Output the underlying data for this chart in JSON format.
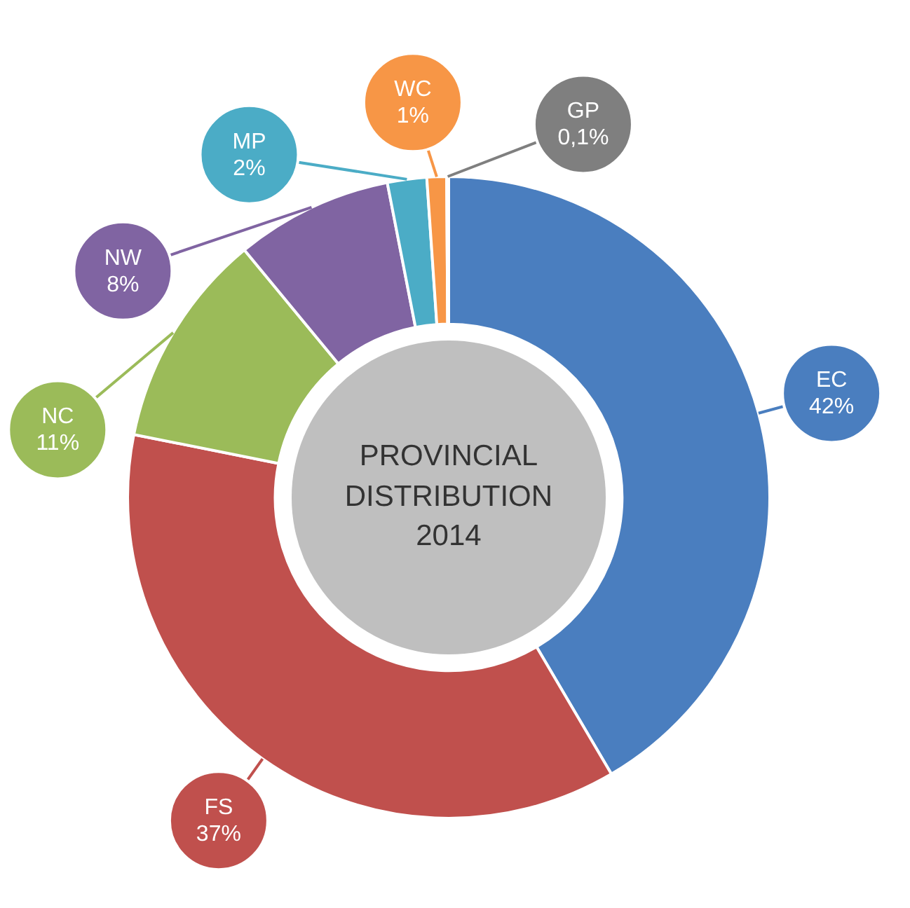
{
  "chart_data": {
    "type": "donut",
    "title": "PROVINCIAL DISTRIBUTION 2014",
    "categories": [
      "EC",
      "FS",
      "NC",
      "NW",
      "MP",
      "WC",
      "GP"
    ],
    "values": [
      42,
      37,
      11,
      8,
      2,
      1,
      0.1
    ],
    "colors": [
      "#4a7ebf",
      "#c0504d",
      "#9bbb59",
      "#8064a2",
      "#4bacc6",
      "#f79646",
      "#7f7f7f"
    ],
    "value_labels": [
      "42%",
      "37%",
      "11%",
      "8%",
      "2%",
      "1%",
      "0,1%"
    ],
    "legend": false
  }
}
